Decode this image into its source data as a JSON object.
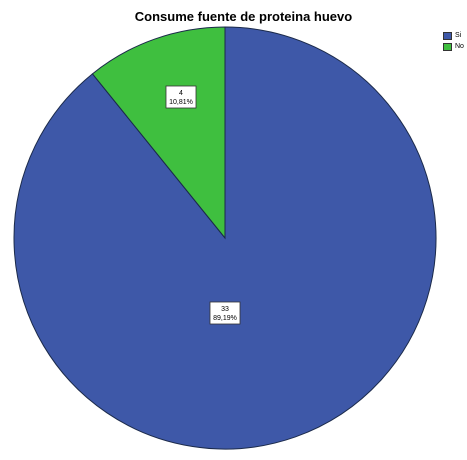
{
  "chart_data": {
    "type": "pie",
    "title": "Consume fuente de proteina huevo",
    "slices": [
      {
        "label": "Si",
        "count": "33",
        "percent": "89,19%",
        "value": 89.19,
        "color": "#3e58a8"
      },
      {
        "label": "No",
        "count": "4",
        "percent": "10,81%",
        "value": 10.81,
        "color": "#3fbf3f"
      }
    ],
    "legend_placement": "top-right"
  },
  "legend": {
    "items": [
      {
        "label": "Si",
        "color": "#3e58a8"
      },
      {
        "label": "No",
        "color": "#3fbf3f"
      }
    ]
  }
}
